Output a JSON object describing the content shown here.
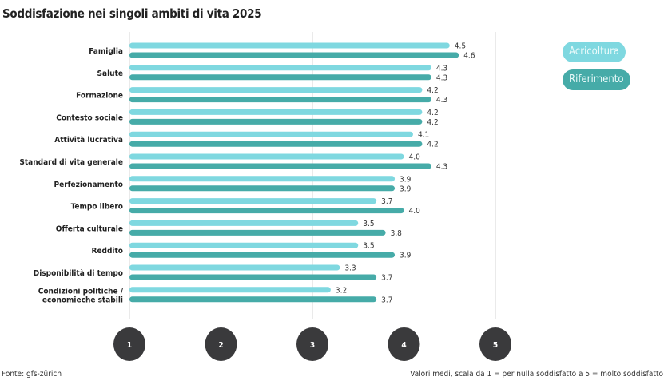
{
  "title": "Soddisfazione nei singoli ambiti di vita 2025",
  "source": "Fonte: gfs-zürich",
  "note": "Valori medi, scala da 1 = per nulla soddisfatto a 5 = molto soddisfatto",
  "chart_data": {
    "type": "bar",
    "orientation": "horizontal",
    "title": "Soddisfazione nei singoli ambiti di vita 2025",
    "categories": [
      "Famiglia",
      "Salute",
      "Formazione",
      "Contesto sociale",
      "Attività lucrativa",
      "Standard di vita generale",
      "Perfezionamento",
      "Tempo libero",
      "Offerta culturale",
      "Reddito",
      "Disponibilità di tempo",
      "Condizioni politiche / economieche stabili"
    ],
    "series": [
      {
        "name": "Acricoltura",
        "color": "#7fd8e0",
        "values": [
          4.5,
          4.3,
          4.2,
          4.2,
          4.1,
          4.0,
          3.9,
          3.7,
          3.5,
          3.5,
          3.3,
          3.2
        ]
      },
      {
        "name": "Riferimento",
        "color": "#46aba8",
        "values": [
          4.6,
          4.3,
          4.3,
          4.2,
          4.2,
          4.3,
          3.9,
          4.0,
          3.8,
          3.9,
          3.7,
          3.7
        ]
      }
    ],
    "xlim": [
      1,
      5
    ],
    "xticks": [
      "1",
      "2",
      "3",
      "4",
      "5"
    ],
    "grid": true,
    "legend": "top-right",
    "tick_color": "#3a3a3c"
  }
}
